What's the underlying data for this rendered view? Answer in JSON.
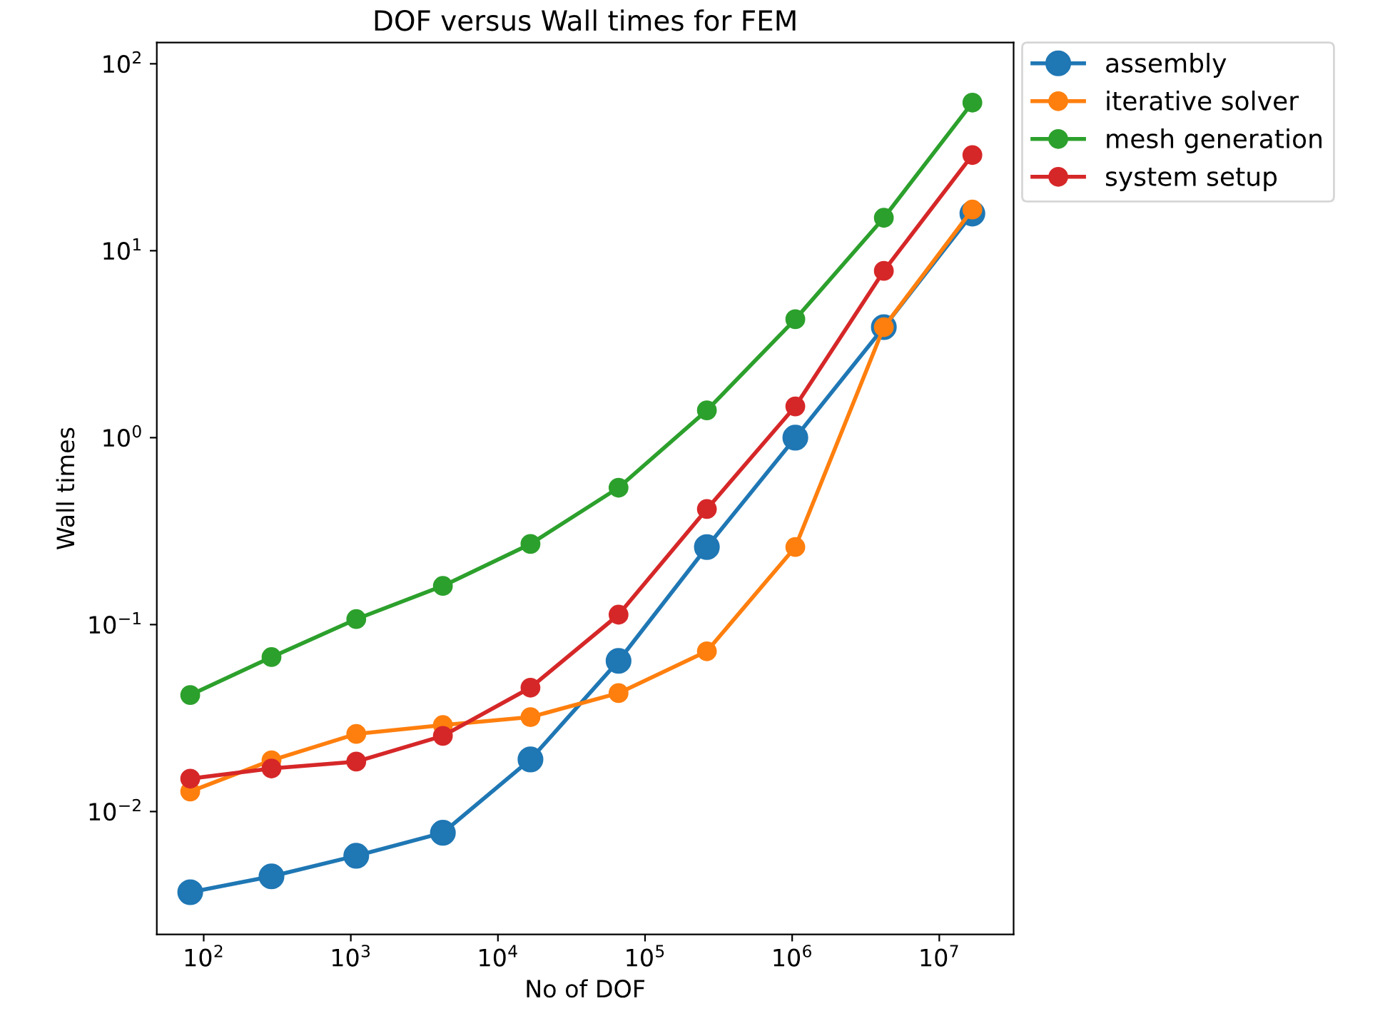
{
  "chart_data": {
    "type": "line",
    "title": "DOF versus Wall times for FEM",
    "xlabel": "No of DOF",
    "ylabel": "Wall times",
    "log": "xy",
    "grid": false,
    "legend": "top right",
    "marker": "circle",
    "line_style": "solid",
    "x": [
      81,
      289,
      1089,
      4225,
      16641,
      66049,
      263169,
      1050625,
      4198401,
      16785409
    ],
    "xlim": [
      48,
      32000000
    ],
    "ylim": [
      0.0022,
      130
    ],
    "xticks": [
      {
        "value": 100,
        "label": "10$^{2}$"
      },
      {
        "value": 1000,
        "label": "10$^{3}$"
      },
      {
        "value": 10000,
        "label": "10$^{4}$"
      },
      {
        "value": 100000,
        "label": "10$^{5}$"
      },
      {
        "value": 1000000,
        "label": "10$^{6}$"
      },
      {
        "value": 10000000,
        "label": "10$^{7}$"
      }
    ],
    "yticks": [
      {
        "value": 0.01,
        "label": "10$^{−2}$"
      },
      {
        "value": 0.1,
        "label": "10$^{−1}$"
      },
      {
        "value": 1,
        "label": "10$^{0}$"
      },
      {
        "value": 10,
        "label": "10$^{1}$"
      },
      {
        "value": 100,
        "label": "10$^{2}$"
      }
    ],
    "series": [
      {
        "name": "assembly",
        "color": "#1f77b4",
        "values": [
          0.0037,
          0.0045,
          0.0058,
          0.0077,
          0.019,
          0.064,
          0.26,
          1.0,
          3.9,
          15.8
        ]
      },
      {
        "name": "iterative solver",
        "color": "#ff7f0e",
        "values": [
          0.0128,
          0.0188,
          0.026,
          0.029,
          0.032,
          0.043,
          0.072,
          0.26,
          3.9,
          16.6
        ]
      },
      {
        "name": "mesh generation",
        "color": "#2ca02c",
        "values": [
          0.042,
          0.067,
          0.107,
          0.161,
          0.27,
          0.54,
          1.4,
          4.3,
          15,
          62
        ]
      },
      {
        "name": "system setup",
        "color": "#d62728",
        "values": [
          0.015,
          0.017,
          0.0185,
          0.0254,
          0.046,
          0.113,
          0.415,
          1.47,
          7.8,
          32.5
        ]
      }
    ]
  }
}
